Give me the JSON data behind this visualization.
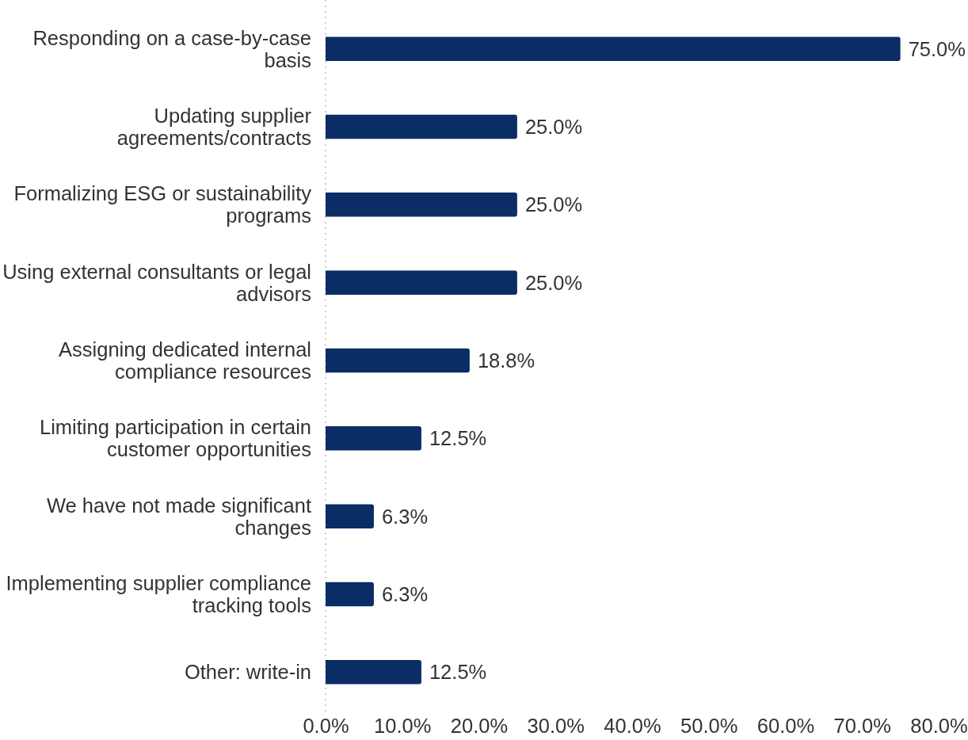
{
  "chart_data": {
    "type": "bar",
    "orientation": "horizontal",
    "categories": [
      "Responding on a case-by-case basis",
      "Updating supplier agreements/contracts",
      "Formalizing ESG or sustainability programs",
      "Using external consultants or legal advisors",
      "Assigning dedicated internal compliance resources",
      "Limiting participation in certain customer opportunities",
      "We have not made significant changes",
      "Implementing supplier compliance tracking tools",
      "Other: write-in"
    ],
    "values": [
      75.0,
      25.0,
      25.0,
      25.0,
      18.8,
      12.5,
      6.3,
      6.3,
      12.5
    ],
    "value_labels": [
      "75.0%",
      "25.0%",
      "25.0%",
      "25.0%",
      "18.8%",
      "12.5%",
      "6.3%",
      "6.3%",
      "12.5%"
    ],
    "color": "#0b2d65",
    "xlim": [
      0,
      80
    ],
    "xticks": [
      {
        "value": 0,
        "label": "0.0%"
      },
      {
        "value": 10,
        "label": "10.0%"
      },
      {
        "value": 20,
        "label": "20.0%"
      },
      {
        "value": 30,
        "label": "30.0%"
      },
      {
        "value": 40,
        "label": "40.0%"
      },
      {
        "value": 50,
        "label": "50.0%"
      },
      {
        "value": 60,
        "label": "60.0%"
      },
      {
        "value": 70,
        "label": "70.0%"
      },
      {
        "value": 80,
        "label": "80.0%"
      }
    ],
    "grid": false
  }
}
